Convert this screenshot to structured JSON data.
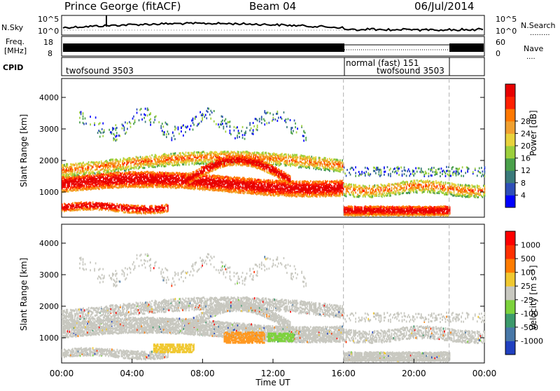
{
  "header": {
    "station": "Prince George (fitACF)",
    "beam": "Beam 04",
    "date": "06/Jul/2014"
  },
  "noise_panel": {
    "left_label": "N.Sky",
    "right_label": "N.Search",
    "left_ticks": [
      "10^5",
      "10^0"
    ],
    "right_ticks": [
      "10^5",
      "10^0"
    ]
  },
  "freq_panel": {
    "left_label_1": "Freq.",
    "left_label_2": "[MHz]",
    "left_ticks": [
      "18",
      "8"
    ],
    "right_label": "Nave",
    "right_ticks": [
      "60",
      "0"
    ]
  },
  "cpid_panel": {
    "label": "CPID",
    "segments": [
      {
        "text": "twofsound 3503",
        "start_hour": 0
      },
      {
        "text": "normal (fast) 151",
        "start_hour": 16
      },
      {
        "text": "twofsound 3503",
        "start_hour": 16
      }
    ]
  },
  "chart_data": [
    {
      "type": "heatmap",
      "title": "",
      "ylabel": "Slant Range [km]",
      "xlabel": "",
      "y_ticks": [
        1000,
        2000,
        3000,
        4000
      ],
      "ylim": [
        200,
        4600
      ],
      "colorbar": {
        "label": "Power [dB]",
        "ticks": [
          4,
          8,
          12,
          16,
          20,
          24,
          28
        ],
        "colors": [
          "#0000ff",
          "#2e4fb8",
          "#3a7a7a",
          "#4aa04a",
          "#9ccf3c",
          "#e8d23c",
          "#f0a030",
          "#ff7800",
          "#ff2000",
          "#e80000"
        ]
      }
    },
    {
      "type": "heatmap",
      "title": "",
      "ylabel": "Slant Range [km]",
      "xlabel": "Time UT",
      "y_ticks": [
        1000,
        2000,
        3000,
        4000
      ],
      "ylim": [
        200,
        4600
      ],
      "x_ticks": [
        "00:00",
        "04:00",
        "08:00",
        "12:00",
        "16:00",
        "20:00",
        "00:00"
      ],
      "xlim_hours": [
        0,
        24
      ],
      "colorbar": {
        "label": "Velocity [m s^-1]",
        "ticks": [
          1000,
          500,
          100,
          25,
          -25,
          -100,
          -500,
          -1000
        ],
        "colors": [
          "#2040c0",
          "#4878a8",
          "#3c9a6c",
          "#7cd23c",
          "#c8c8c0",
          "#f0c830",
          "#ff7c00",
          "#ff3000",
          "#ff0000"
        ]
      }
    }
  ],
  "mode_change_hours": [
    16,
    22
  ]
}
